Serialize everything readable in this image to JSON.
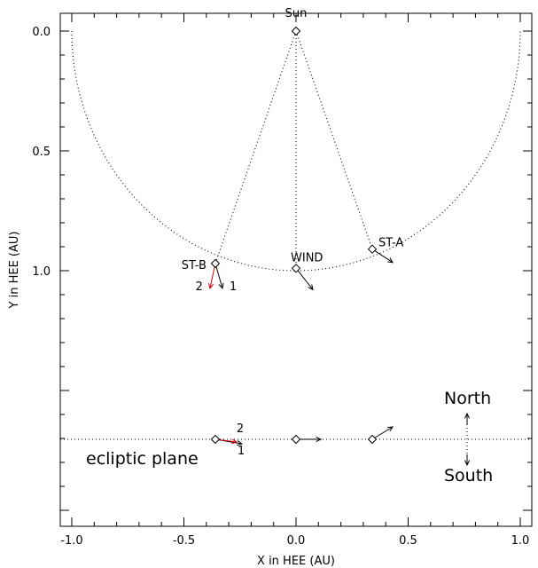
{
  "chart_data": {
    "type": "scatter",
    "xlabel": "X in HEE (AU)",
    "ylabel": "Y in HEE (AU)",
    "xlim": [
      -1.05,
      1.05
    ],
    "ylim": [
      0.0,
      1.0
    ],
    "x_ticks": [
      "-1.0",
      "-0.5",
      "0.0",
      "0.5",
      "1.0"
    ],
    "x_tick_values": [
      -1.0,
      -0.5,
      0.0,
      0.5,
      1.0
    ],
    "y_ticks": [
      "0.0",
      "0.5",
      "1.0"
    ],
    "y_tick_values": [
      0.0,
      0.5,
      1.0
    ],
    "sun": {
      "label": "Sun",
      "x": 0.0,
      "y": 0.0
    },
    "spacecraft": [
      {
        "label": "ST-B",
        "x": -0.36,
        "y": 0.97
      },
      {
        "label": "WIND",
        "x": 0.0,
        "y": 0.99
      },
      {
        "label": "ST-A",
        "x": 0.34,
        "y": 0.91
      }
    ],
    "arrow_labels": {
      "first": "1",
      "second": "2"
    },
    "ecliptic_label": "ecliptic plane",
    "north_label": "North",
    "south_label": "South",
    "colors": {
      "primary": "#000000",
      "secondary": "#d40000"
    }
  }
}
